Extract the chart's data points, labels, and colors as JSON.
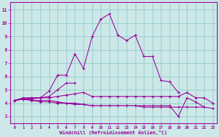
{
  "xlabel": "Windchill (Refroidissement éolien,°C)",
  "bg_color": "#cce8e8",
  "line_color": "#990099",
  "grid_color": "#99cccc",
  "x_ticks": [
    0,
    1,
    2,
    3,
    4,
    5,
    6,
    7,
    8,
    9,
    10,
    11,
    12,
    13,
    14,
    15,
    16,
    17,
    18,
    19,
    20,
    21,
    22,
    23
  ],
  "y_ticks": [
    3,
    4,
    5,
    6,
    7,
    8,
    9,
    10,
    11
  ],
  "xlim": [
    -0.5,
    23.5
  ],
  "ylim": [
    2.5,
    11.6
  ],
  "series": [
    [
      4.2,
      4.4,
      4.4,
      4.4,
      4.9,
      6.1,
      6.1,
      7.7,
      6.6,
      9.0,
      10.3,
      10.7,
      9.1,
      8.7,
      9.1,
      7.5,
      7.5,
      5.7,
      5.6,
      4.8,
      null,
      null,
      null,
      null
    ],
    [
      4.2,
      4.3,
      4.4,
      4.4,
      4.5,
      5.0,
      5.5,
      5.5,
      null,
      null,
      null,
      null,
      null,
      null,
      null,
      null,
      null,
      null,
      null,
      null,
      null,
      null,
      null,
      null
    ],
    [
      4.2,
      4.3,
      4.3,
      4.4,
      4.4,
      4.5,
      4.6,
      4.7,
      4.8,
      4.5,
      4.5,
      4.5,
      4.5,
      4.5,
      4.5,
      4.5,
      4.5,
      4.5,
      4.5,
      4.5,
      4.8,
      4.4,
      4.4,
      4.0
    ],
    [
      4.2,
      4.3,
      4.2,
      4.1,
      4.1,
      4.0,
      4.0,
      3.9,
      3.9,
      3.8,
      3.8,
      3.8,
      3.8,
      3.8,
      3.8,
      3.8,
      3.8,
      3.8,
      3.8,
      3.0,
      4.4,
      4.1,
      3.7,
      null
    ],
    [
      4.2,
      4.3,
      4.2,
      4.2,
      4.2,
      4.1,
      4.0,
      4.0,
      3.9,
      3.8,
      3.8,
      3.8,
      3.8,
      3.8,
      3.8,
      3.7,
      3.7,
      3.7,
      3.7,
      3.7,
      3.7,
      3.7,
      3.7,
      3.6
    ]
  ]
}
